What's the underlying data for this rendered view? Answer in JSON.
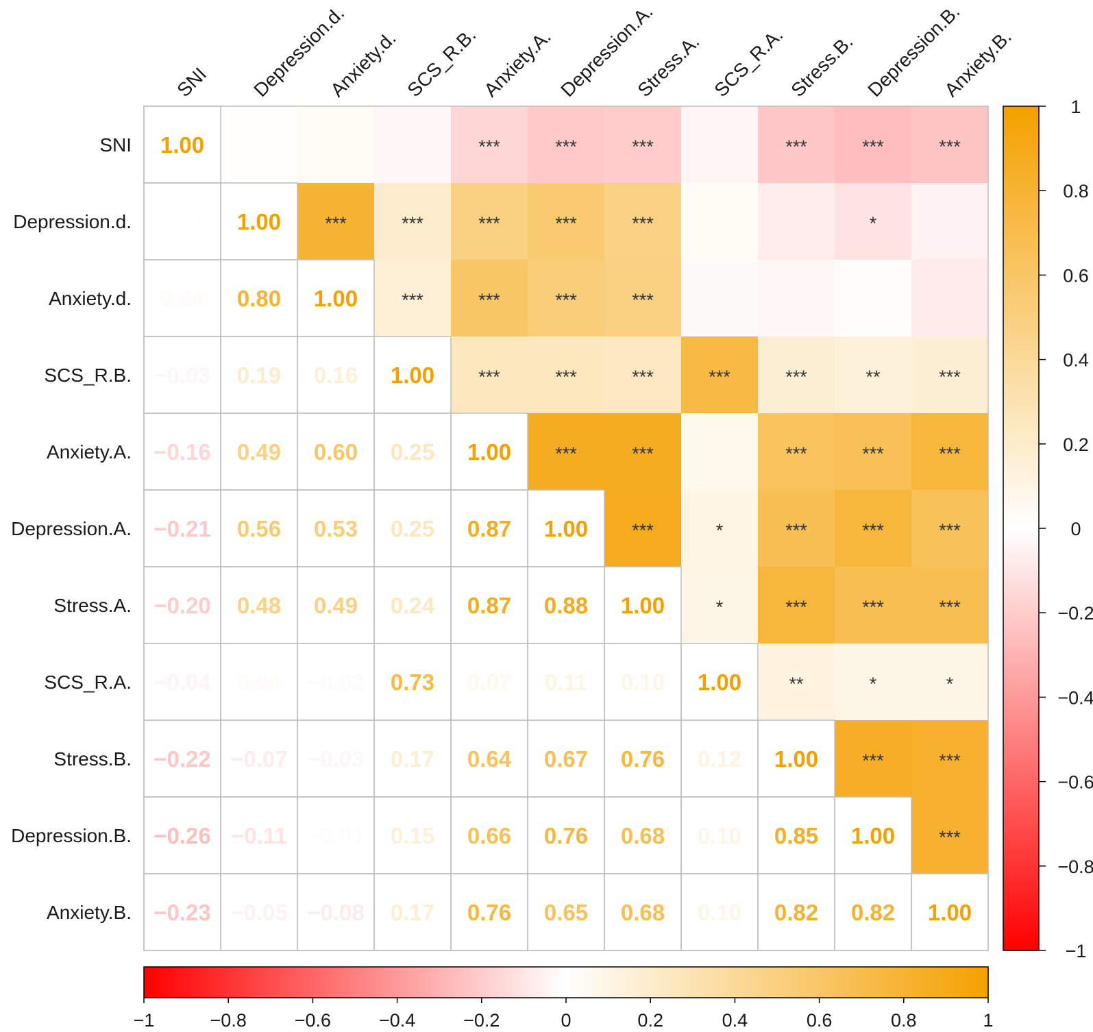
{
  "chart_data": {
    "type": "heatmap",
    "title": "",
    "variables": [
      "SNI",
      "Depression.d.",
      "Anxiety.d.",
      "SCS_R.B.",
      "Anxiety.A.",
      "Depression.A.",
      "Stress.A.",
      "SCS_R.A.",
      "Stress.B.",
      "Depression.B.",
      "Anxiety.B."
    ],
    "matrix": [
      [
        1.0,
        0.01,
        0.04,
        -0.03,
        -0.16,
        -0.21,
        -0.2,
        -0.04,
        -0.22,
        -0.26,
        -0.23
      ],
      [
        0.01,
        1.0,
        0.8,
        0.19,
        0.49,
        0.56,
        0.48,
        0.04,
        -0.07,
        -0.11,
        -0.05
      ],
      [
        0.04,
        0.8,
        1.0,
        0.16,
        0.6,
        0.53,
        0.49,
        -0.02,
        -0.03,
        -0.01,
        -0.08
      ],
      [
        -0.03,
        0.19,
        0.16,
        1.0,
        0.25,
        0.25,
        0.24,
        0.73,
        0.17,
        0.15,
        0.17
      ],
      [
        -0.16,
        0.49,
        0.6,
        0.25,
        1.0,
        0.87,
        0.87,
        0.07,
        0.64,
        0.66,
        0.76
      ],
      [
        -0.21,
        0.56,
        0.53,
        0.25,
        0.87,
        1.0,
        0.88,
        0.11,
        0.67,
        0.76,
        0.65
      ],
      [
        -0.2,
        0.48,
        0.49,
        0.24,
        0.87,
        0.88,
        1.0,
        0.1,
        0.76,
        0.68,
        0.68
      ],
      [
        -0.04,
        0.04,
        -0.02,
        0.73,
        0.07,
        0.11,
        0.1,
        1.0,
        0.12,
        0.1,
        0.1
      ],
      [
        -0.22,
        -0.07,
        -0.03,
        0.17,
        0.64,
        0.67,
        0.76,
        0.12,
        1.0,
        0.85,
        0.82
      ],
      [
        -0.26,
        -0.11,
        -0.01,
        0.15,
        0.66,
        0.76,
        0.68,
        0.1,
        0.85,
        1.0,
        0.82
      ],
      [
        -0.23,
        -0.05,
        -0.08,
        0.17,
        0.76,
        0.65,
        0.68,
        0.1,
        0.82,
        0.82,
        1.0
      ]
    ],
    "lower_triangle": "numbers",
    "upper_triangle": "colored cells with significance stars",
    "significance": [
      [
        "",
        "",
        "",
        "",
        "***",
        "***",
        "***",
        "",
        "***",
        "***",
        "***"
      ],
      [
        "",
        "",
        "***",
        "***",
        "***",
        "***",
        "***",
        "",
        "",
        "*",
        ""
      ],
      [
        "",
        "",
        "",
        "***",
        "***",
        "***",
        "***",
        "",
        "",
        "",
        ""
      ],
      [
        "",
        "",
        "",
        "",
        "***",
        "***",
        "***",
        "***",
        "***",
        "**",
        "***"
      ],
      [
        "",
        "",
        "",
        "",
        "",
        "***",
        "***",
        "",
        "***",
        "***",
        "***"
      ],
      [
        "",
        "",
        "",
        "",
        "",
        "",
        "***",
        "*",
        "***",
        "***",
        "***"
      ],
      [
        "",
        "",
        "",
        "",
        "",
        "",
        "",
        "*",
        "***",
        "***",
        "***"
      ],
      [
        "",
        "",
        "",
        "",
        "",
        "",
        "",
        "",
        "**",
        "*",
        "*"
      ],
      [
        "",
        "",
        "",
        "",
        "",
        "",
        "",
        "",
        "",
        "***",
        "***"
      ],
      [
        "",
        "",
        "",
        "",
        "",
        "",
        "",
        "",
        "",
        "",
        "***"
      ],
      [
        "",
        "",
        "",
        "",
        "",
        "",
        "",
        "",
        "",
        "",
        ""
      ]
    ],
    "colorscale": {
      "min": -1,
      "max": 1,
      "low_color": "#ff0000",
      "mid_color": "#ffffff",
      "high_color": "#f5a000"
    },
    "colorbar_right_ticks": [
      "1",
      "0.8",
      "0.6",
      "0.4",
      "0.2",
      "0",
      "−0.2",
      "−0.4",
      "−0.6",
      "−0.8",
      "−1"
    ],
    "colorbar_bottom_ticks": [
      "−1",
      "−0.8",
      "−0.6",
      "−0.4",
      "−0.2",
      "0",
      "0.2",
      "0.4",
      "0.6",
      "0.8",
      "1"
    ],
    "colorbar_positions": [
      "right",
      "bottom"
    ]
  }
}
